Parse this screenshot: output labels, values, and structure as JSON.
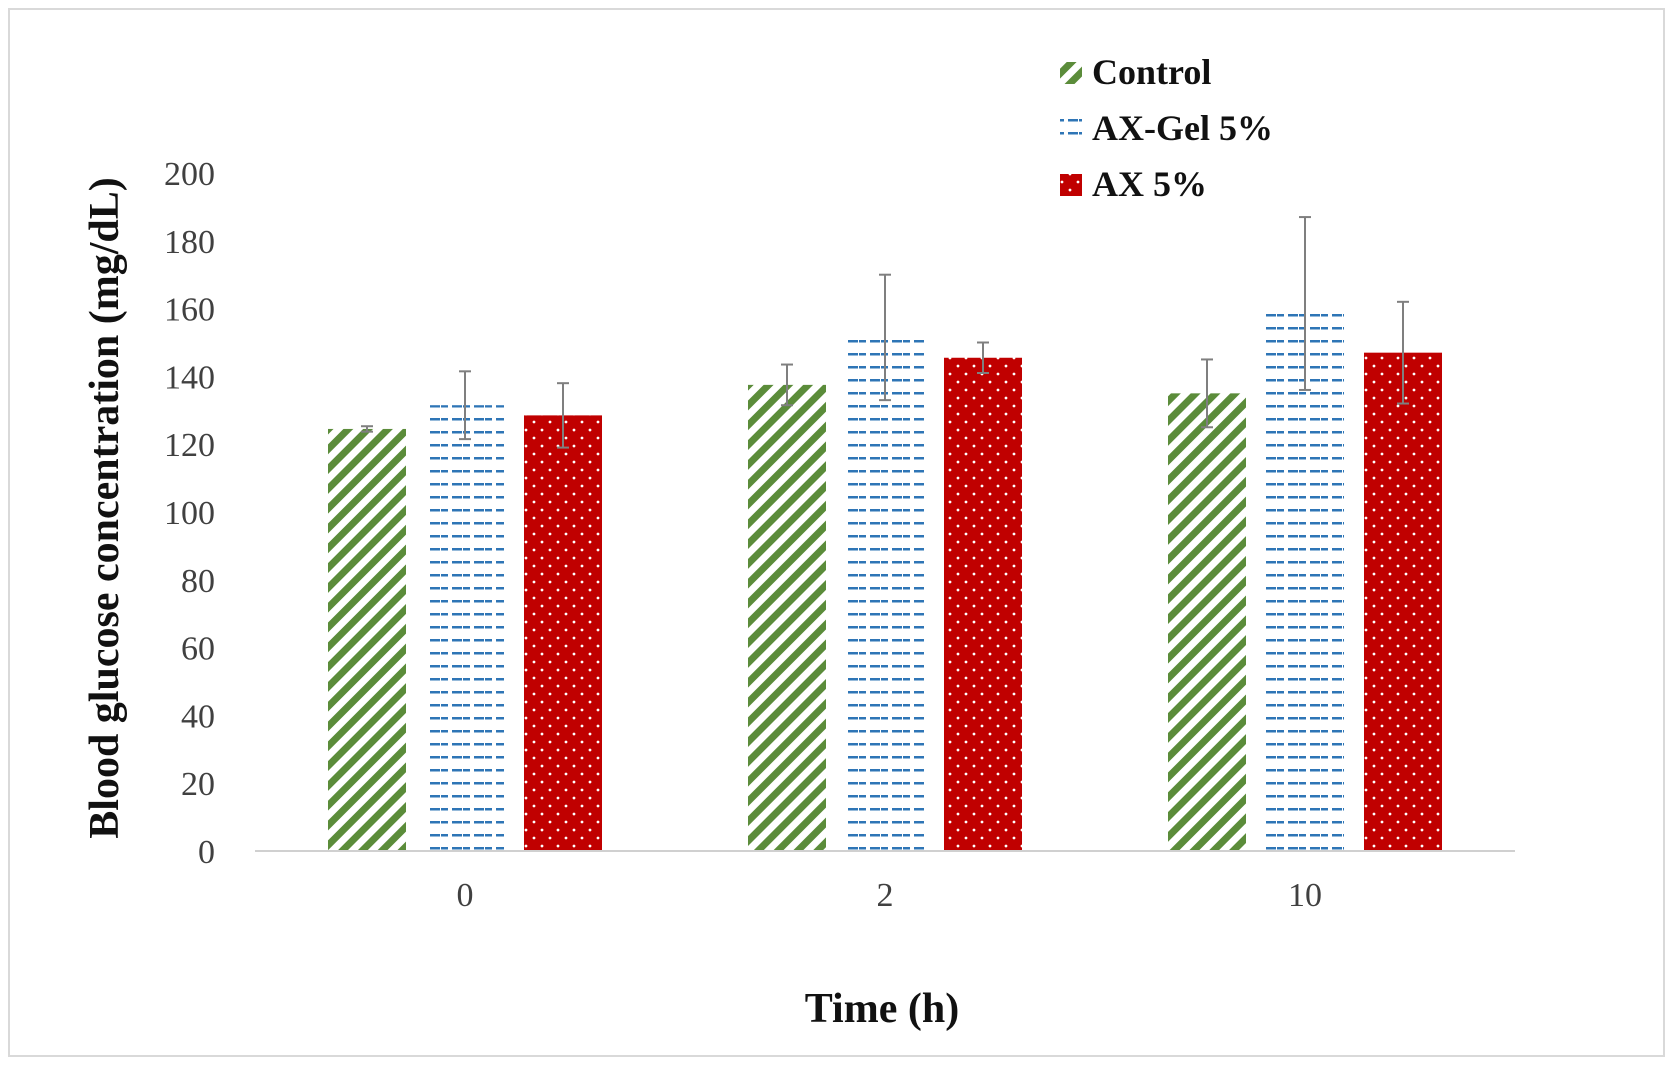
{
  "chart_data": {
    "type": "bar",
    "title": "",
    "xlabel": "Time (h)",
    "ylabel": "Blood glucose concentration (mg/dL)",
    "categories": [
      "0",
      "2",
      "10"
    ],
    "ylim": [
      0,
      200
    ],
    "yticks": [
      0,
      20,
      40,
      60,
      80,
      100,
      120,
      140,
      160,
      180,
      200
    ],
    "grid": false,
    "legend_position": "top-right",
    "series": [
      {
        "name": "Control",
        "pattern": "diagonal-stripes",
        "color": "#5b8c3a",
        "values": [
          124.5,
          137.5,
          135.0
        ],
        "errors": [
          0.8,
          6.0,
          10.0
        ]
      },
      {
        "name": "AX-Gel 5%",
        "pattern": "dashes",
        "color": "#2e75b6",
        "values": [
          131.5,
          151.5,
          161.5
        ],
        "errors": [
          10.0,
          18.5,
          25.5
        ]
      },
      {
        "name": "AX 5%",
        "pattern": "dots",
        "color": "#c00000",
        "values": [
          128.5,
          145.5,
          147.0
        ],
        "errors": [
          9.5,
          4.5,
          15.0
        ]
      }
    ]
  }
}
